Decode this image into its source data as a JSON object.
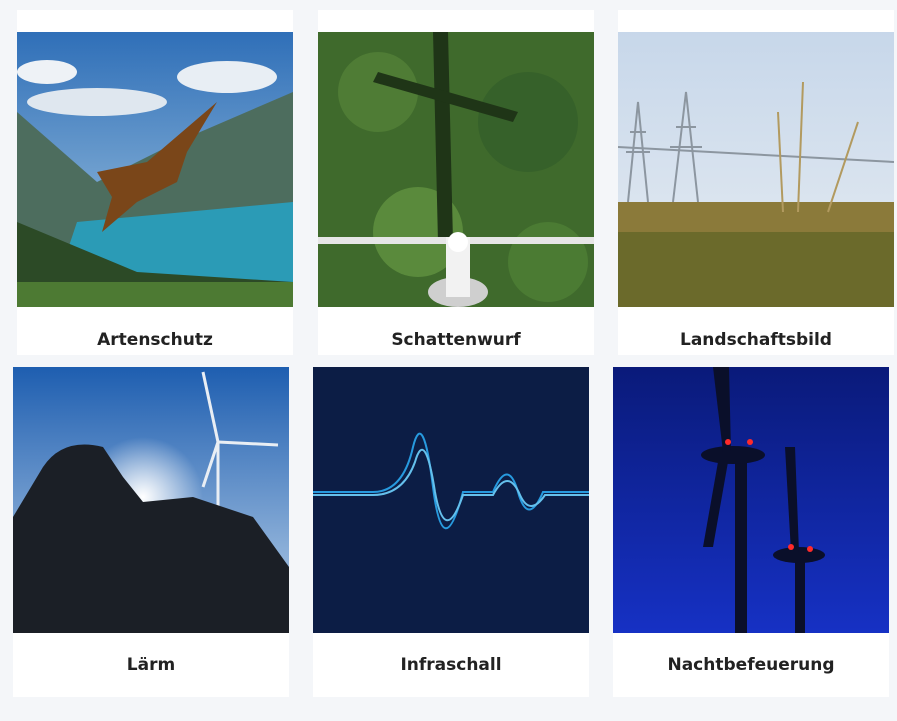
{
  "cards": [
    {
      "label": "Artenschutz"
    },
    {
      "label": "Schattenwurf"
    },
    {
      "label": "Landschaftsbild"
    },
    {
      "label": "Lärm"
    },
    {
      "label": "Infraschall"
    },
    {
      "label": "Nachtbefeuerung"
    }
  ]
}
